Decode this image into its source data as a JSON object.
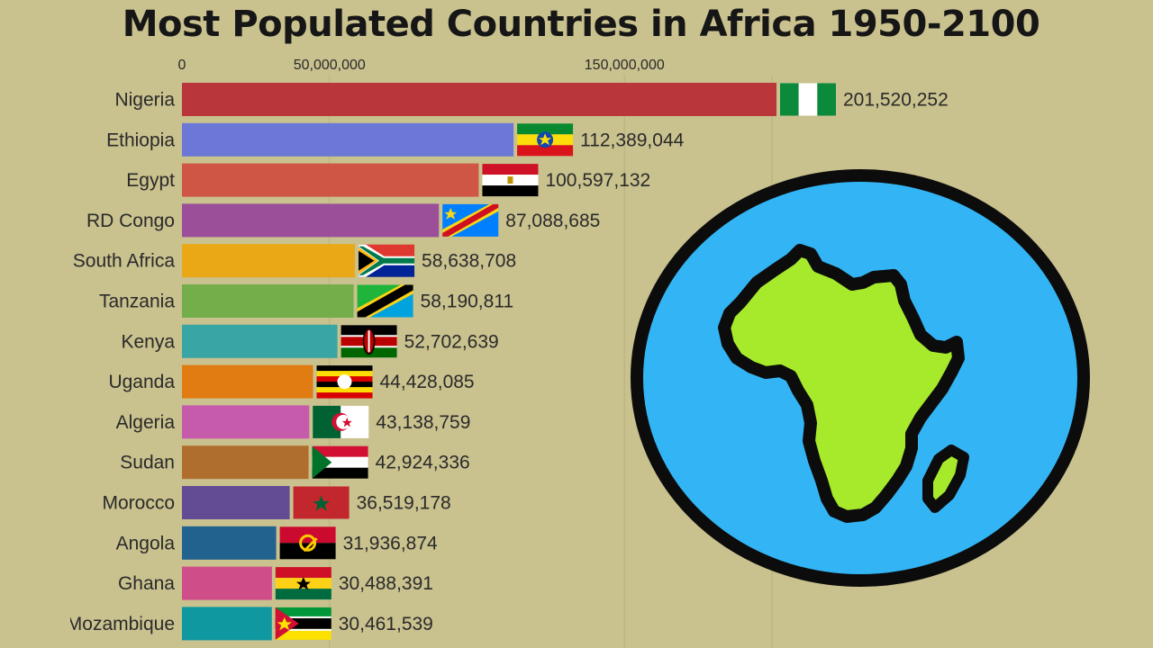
{
  "chart_data": {
    "type": "bar",
    "orientation": "horizontal",
    "title": "Most Populated Countries in Africa 1950-2100",
    "x_ticks": [
      {
        "value": 0,
        "label": "0"
      },
      {
        "value": 50000000,
        "label": "50,000,000"
      },
      {
        "value": 150000000,
        "label": "150,000,000"
      }
    ],
    "xlim": [
      0,
      201520252
    ],
    "grid": true,
    "categories": [
      "Nigeria",
      "Ethiopia",
      "Egypt",
      "RD Congo",
      "South Africa",
      "Tanzania",
      "Kenya",
      "Uganda",
      "Algeria",
      "Sudan",
      "Morocco",
      "Angola",
      "Ghana",
      "Mozambique"
    ],
    "values": [
      201520252,
      112389044,
      100597132,
      87088685,
      58638708,
      58190811,
      52702639,
      44428085,
      43138759,
      42924336,
      36519178,
      31936874,
      30488391,
      30461539
    ],
    "value_labels": [
      "201,520,252",
      "112,389,044",
      "100,597,132",
      "87,088,685",
      "58,638,708",
      "58,190,811",
      "52,702,639",
      "44,428,085",
      "43,138,759",
      "42,924,336",
      "36,519,178",
      "31,936,874",
      "30,488,391",
      "30,461,539"
    ],
    "colors": [
      "#b9373b",
      "#6c78d6",
      "#cf5645",
      "#9a4f98",
      "#eaa817",
      "#73ae4b",
      "#39a5a4",
      "#e07c12",
      "#c75bab",
      "#b06e2e",
      "#634c93",
      "#22628f",
      "#cf4d88",
      "#0f98a0"
    ],
    "flags": [
      "nigeria-flag",
      "ethiopia-flag",
      "egypt-flag",
      "dr-congo-flag",
      "south-africa-flag",
      "tanzania-flag",
      "kenya-flag",
      "uganda-flag",
      "algeria-flag",
      "sudan-flag",
      "morocco-flag",
      "angola-flag",
      "ghana-flag",
      "mozambique-flag"
    ]
  },
  "decoration": {
    "globe_icon": "africa-globe-icon",
    "ocean_color": "#33b5f5",
    "land_color": "#a7ea2c",
    "outline_color": "#0c0c0c"
  }
}
